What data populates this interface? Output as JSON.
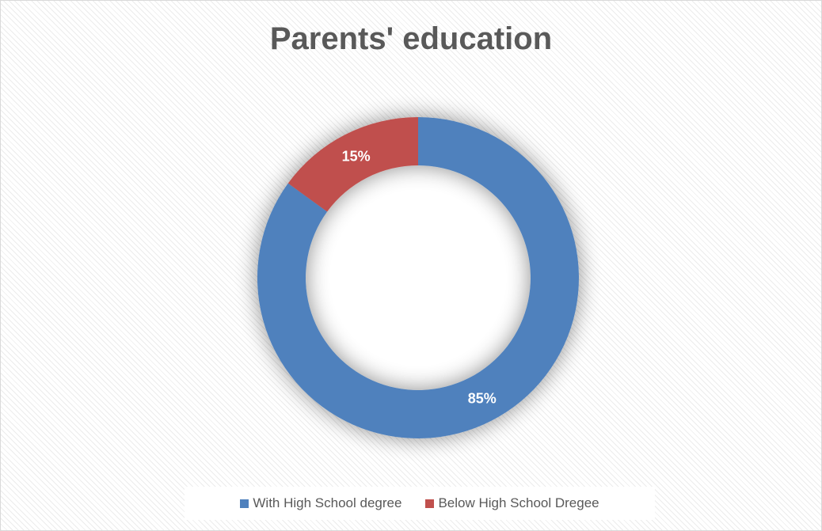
{
  "chart_data": {
    "type": "pie",
    "variant": "doughnut",
    "title": "Parents' education",
    "categories": [
      "With High School degree",
      "Below High School Dregee"
    ],
    "values": [
      85,
      15
    ],
    "data_labels": [
      "85%",
      "15%"
    ],
    "colors": [
      "#4f81bd",
      "#c0504d"
    ],
    "legend_position": "bottom",
    "start_angle": "top, clockwise"
  }
}
